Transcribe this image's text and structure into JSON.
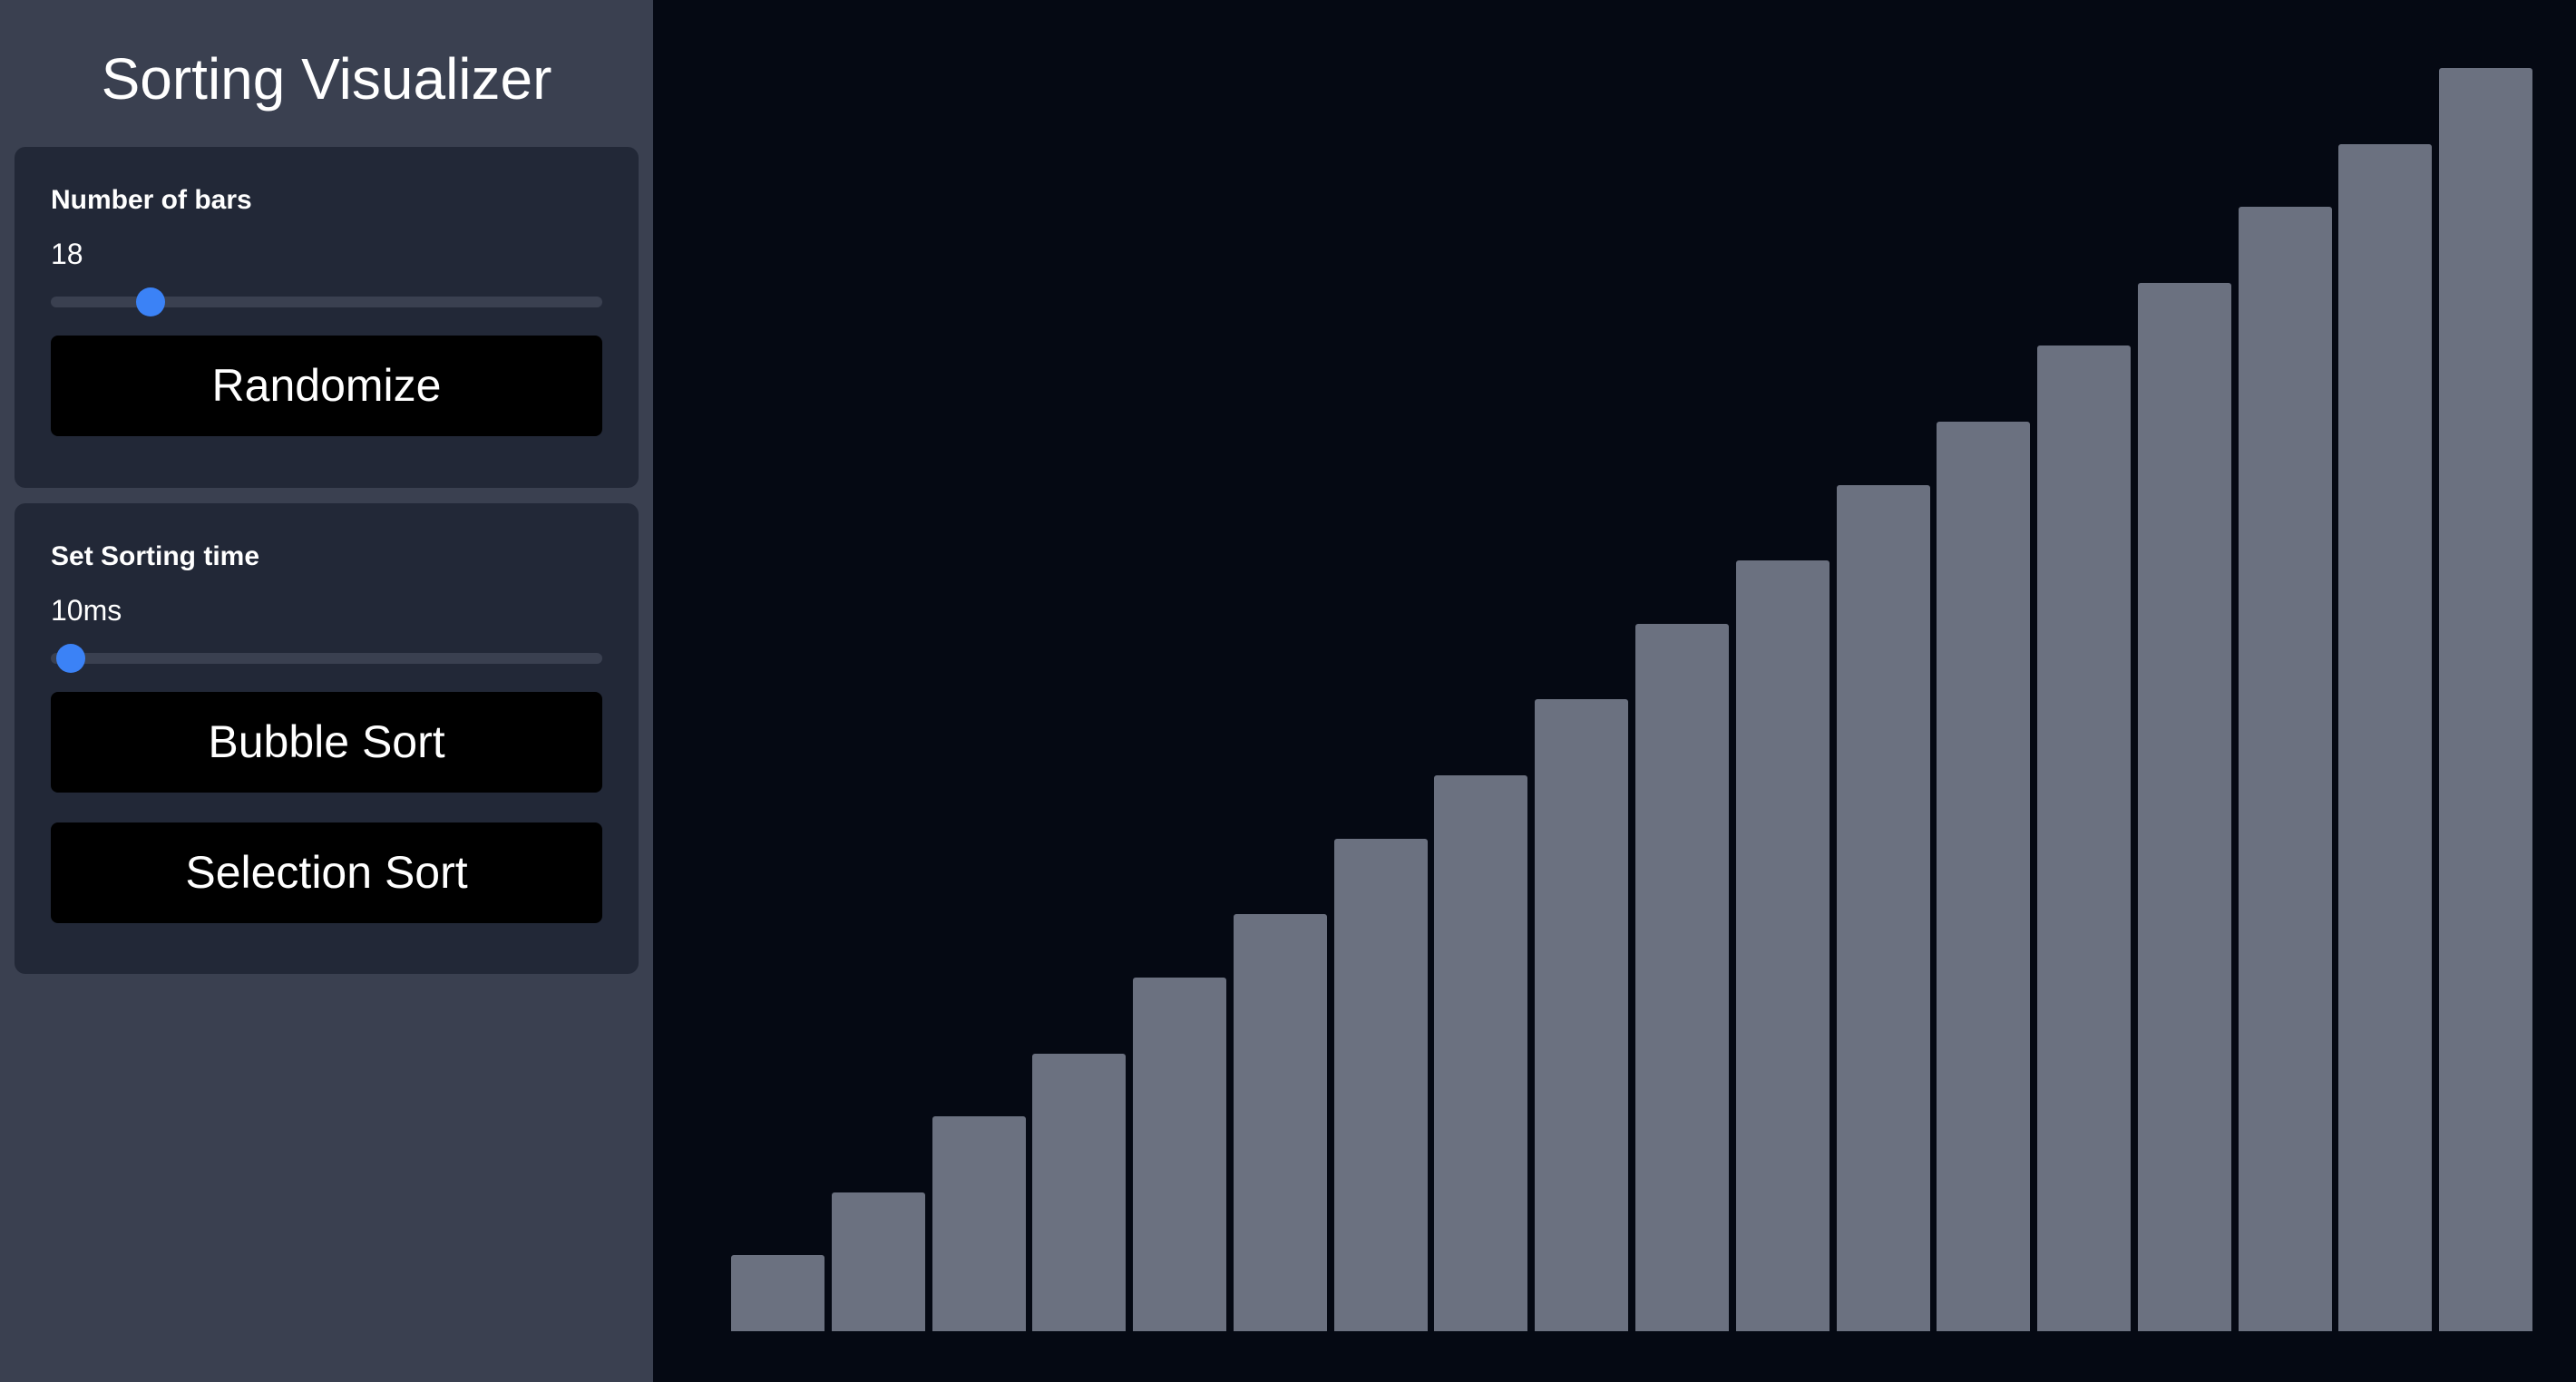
{
  "app": {
    "title": "Sorting Visualizer"
  },
  "bars_panel": {
    "label": "Number of bars",
    "value": "18",
    "slider": {
      "min": 2,
      "max": 100,
      "value": 18
    },
    "randomize_label": "Randomize"
  },
  "sort_panel": {
    "label": "Set Sorting time",
    "value": "10ms",
    "slider": {
      "min": 5,
      "max": 500,
      "value": 10
    },
    "bubble_label": "Bubble Sort",
    "selection_label": "Selection Sort"
  },
  "colors": {
    "accent": "#3b82f6",
    "bar": "#6b7180",
    "background": "#050913",
    "sidebar": "#3a4050",
    "panel": "#222837",
    "button": "#000000"
  },
  "bars": {
    "values": [
      6,
      11,
      17,
      22,
      28,
      33,
      39,
      44,
      50,
      56,
      61,
      67,
      72,
      78,
      83,
      89,
      94,
      100
    ]
  }
}
